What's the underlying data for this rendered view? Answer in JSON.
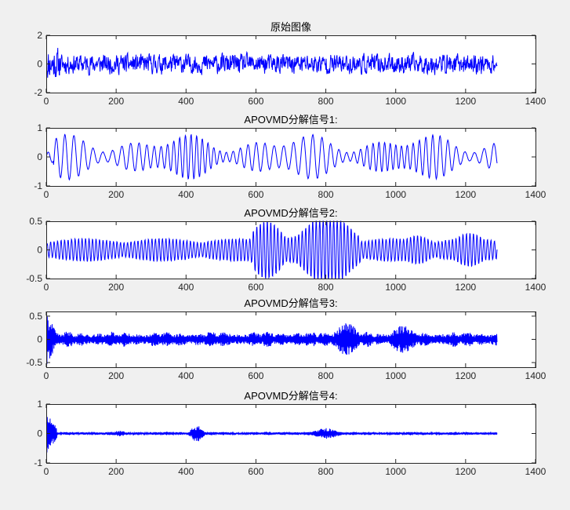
{
  "window": {
    "width": 727,
    "height": 650
  },
  "colors": {
    "background": "#f0f0f0",
    "axes_face": "#ffffff",
    "axis": "#262626",
    "line": "#0000ff"
  },
  "chart_data": [
    {
      "type": "line",
      "title": "原始图像",
      "xlim": [
        0,
        1400
      ],
      "ylim": [
        -2,
        2
      ],
      "xticks": [
        0,
        200,
        400,
        600,
        800,
        1000,
        1200,
        1400
      ],
      "yticks": [
        -2,
        0,
        2
      ],
      "n_points": 1290,
      "signal": {
        "kind": "noise",
        "amplitude": 0.45,
        "seed": 11,
        "burst_start": 1.6,
        "peak_range": [
          -1.6,
          1.9
        ]
      },
      "series": [
        {
          "values_summary": "noisy signal, ~1290 samples, mostly within -1 to 1"
        }
      ]
    },
    {
      "type": "line",
      "title": "APOVMD分解信号1:",
      "xlim": [
        0,
        1400
      ],
      "ylim": [
        -1,
        1
      ],
      "xticks": [
        0,
        200,
        400,
        600,
        800,
        1000,
        1200,
        1400
      ],
      "yticks": [
        -1,
        0,
        1
      ],
      "n_points": 1290,
      "signal": {
        "kind": "lowfreq",
        "period": 22,
        "amplitude": 0.45,
        "seed": 21
      },
      "series": [
        {
          "values_summary": "low-frequency oscillation, amplitude up to ~0.7"
        }
      ]
    },
    {
      "type": "line",
      "title": "APOVMD分解信号2:",
      "xlim": [
        0,
        1400
      ],
      "ylim": [
        -0.5,
        0.5
      ],
      "xticks": [
        0,
        200,
        400,
        600,
        800,
        1000,
        1200,
        1400
      ],
      "yticks": [
        -0.5,
        0,
        0.5
      ],
      "n_points": 1290,
      "signal": {
        "kind": "midfreq",
        "period": 10,
        "amplitude": 0.2,
        "seed": 31,
        "bursts": [
          [
            620,
            640,
            0.38
          ],
          [
            790,
            820,
            0.48
          ],
          [
            1050,
            1070,
            0.25
          ],
          [
            1200,
            1220,
            0.3
          ]
        ]
      },
      "series": [
        {
          "values_summary": "mid-frequency oscillation, peaks near 600-850"
        }
      ]
    },
    {
      "type": "line",
      "title": "APOVMD分解信号3:",
      "xlim": [
        0,
        1400
      ],
      "ylim": [
        -0.6,
        0.6
      ],
      "xticks": [
        0,
        200,
        400,
        600,
        800,
        1000,
        1200,
        1400
      ],
      "yticks": [
        -0.5,
        0,
        0.5
      ],
      "n_points": 1290,
      "signal": {
        "kind": "highfreq",
        "amplitude": 0.17,
        "seed": 41,
        "start_burst": 0.55,
        "bursts": [
          [
            840,
            880,
            0.35
          ],
          [
            1000,
            1040,
            0.3
          ]
        ]
      },
      "series": [
        {
          "values_summary": "high-frequency dense oscillation, envelope ~0.2"
        }
      ]
    },
    {
      "type": "line",
      "title": "APOVMD分解信号4:",
      "xlim": [
        0,
        1400
      ],
      "ylim": [
        -1,
        1
      ],
      "xticks": [
        0,
        200,
        400,
        600,
        800,
        1000,
        1200,
        1400
      ],
      "yticks": [
        -1,
        0,
        1
      ],
      "n_points": 1290,
      "signal": {
        "kind": "veryhigh",
        "amplitude": 0.06,
        "seed": 51,
        "start_burst": 0.7,
        "bursts": [
          [
            420,
            440,
            0.28
          ],
          [
            200,
            220,
            0.1
          ],
          [
            780,
            820,
            0.18
          ]
        ]
      },
      "series": [
        {
          "values_summary": "very high-frequency, transient near start, small amplitude after"
        }
      ]
    }
  ]
}
